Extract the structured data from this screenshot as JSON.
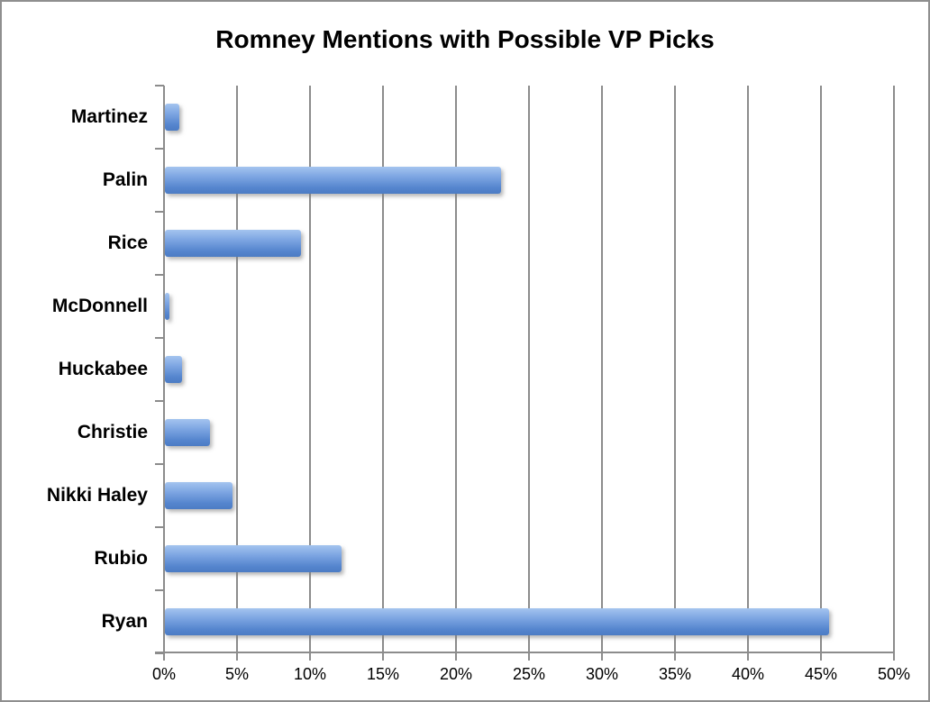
{
  "title": "Romney Mentions with Possible VP Picks",
  "colors": {
    "bar_gradient_top": "#A4C4EF",
    "bar_gradient_upper_mid": "#7FA7E3",
    "bar_gradient_lower_mid": "#5585CE",
    "bar_gradient_bottom": "#4C7CC4",
    "gridline": "#8c8c8c",
    "axis": "#8c8c8c",
    "text": "#000000",
    "frame_border": "#8f8f8f",
    "background": "#ffffff"
  },
  "chart_data": {
    "type": "bar",
    "orientation": "horizontal",
    "title": "Romney Mentions with Possible VP Picks",
    "categories": [
      "Martinez",
      "Palin",
      "Rice",
      "McDonnell",
      "Huckabee",
      "Christie",
      "Nikki Haley",
      "Rubio",
      "Ryan"
    ],
    "values": [
      1.0,
      23.0,
      9.3,
      0.3,
      1.2,
      3.1,
      4.6,
      12.1,
      45.5
    ],
    "unit": "%",
    "xlabel": "",
    "ylabel": "",
    "xlim": [
      0,
      50
    ],
    "x_tick_values": [
      0,
      5,
      10,
      15,
      20,
      25,
      30,
      35,
      40,
      45,
      50
    ],
    "x_tick_labels": [
      "0%",
      "5%",
      "10%",
      "15%",
      "20%",
      "25%",
      "30%",
      "35%",
      "40%",
      "45%",
      "50%"
    ],
    "grid": true,
    "legend": false,
    "category_order": "top-to-bottom as listed"
  }
}
